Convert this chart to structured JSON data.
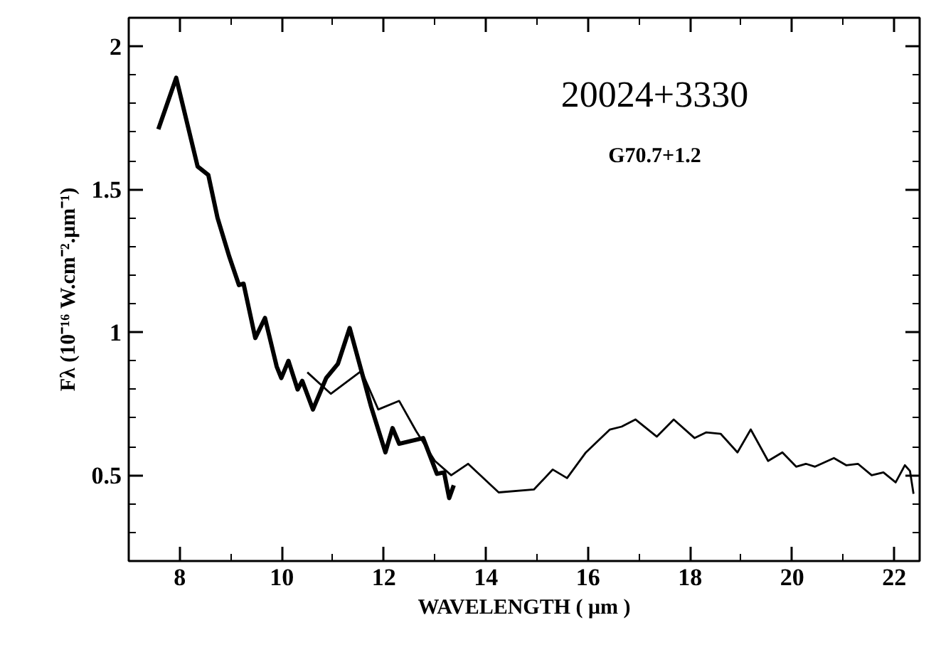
{
  "chart_data": {
    "type": "line",
    "xlabel": "WAVELENGTH ( μm )",
    "ylabel": "Fλ (10⁻¹⁶ W.cm⁻².μm⁻¹)",
    "annotations": [
      "20024+3330",
      "G70.7+1.2"
    ],
    "xlim": [
      7,
      22.5
    ],
    "ylim": [
      0.2,
      2.1
    ],
    "xticks": [
      8,
      10,
      12,
      14,
      16,
      18,
      20,
      22
    ],
    "yticks": [
      0.5,
      1,
      1.5,
      2
    ],
    "grid": false,
    "marker": "none",
    "line_style": "solid",
    "series": [
      {
        "color": "#000000",
        "x": [
          7.58,
          7.93,
          8.35,
          8.56,
          8.74,
          8.97,
          9.16,
          9.25,
          9.48,
          9.67,
          9.9,
          9.99,
          10.13,
          10.31,
          10.4,
          10.61,
          10.87,
          11.1,
          11.33,
          11.56,
          11.75,
          12.03,
          12.17,
          12.3,
          12.77,
          13.04,
          13.18,
          13.28,
          13.37
        ],
        "values": [
          1.71,
          1.89,
          1.58,
          1.55,
          1.4,
          1.265,
          1.165,
          1.17,
          0.98,
          1.05,
          0.88,
          0.84,
          0.9,
          0.8,
          0.83,
          0.73,
          0.84,
          0.89,
          1.015,
          0.865,
          0.74,
          0.58,
          0.665,
          0.61,
          0.63,
          0.505,
          0.51,
          0.42,
          0.465
        ]
      },
      {
        "color": "#000000",
        "x": [
          10.5,
          10.96,
          11.56,
          11.89,
          12.3,
          12.63,
          13.0,
          13.32,
          13.65,
          14.25,
          14.94,
          15.31,
          15.59,
          15.96,
          16.43,
          16.66,
          16.93,
          17.35,
          17.68,
          18.09,
          18.32,
          18.6,
          18.93,
          19.19,
          19.53,
          19.81,
          20.08,
          20.27,
          20.45,
          20.82,
          21.06,
          21.29,
          21.56,
          21.79,
          22.03,
          22.21,
          22.31,
          22.38
        ],
        "values": [
          0.86,
          0.785,
          0.865,
          0.73,
          0.76,
          0.655,
          0.55,
          0.5,
          0.54,
          0.44,
          0.45,
          0.52,
          0.49,
          0.58,
          0.66,
          0.67,
          0.695,
          0.635,
          0.695,
          0.63,
          0.65,
          0.645,
          0.58,
          0.66,
          0.55,
          0.58,
          0.53,
          0.54,
          0.53,
          0.56,
          0.535,
          0.54,
          0.5,
          0.51,
          0.475,
          0.535,
          0.515,
          0.435
        ]
      }
    ]
  }
}
